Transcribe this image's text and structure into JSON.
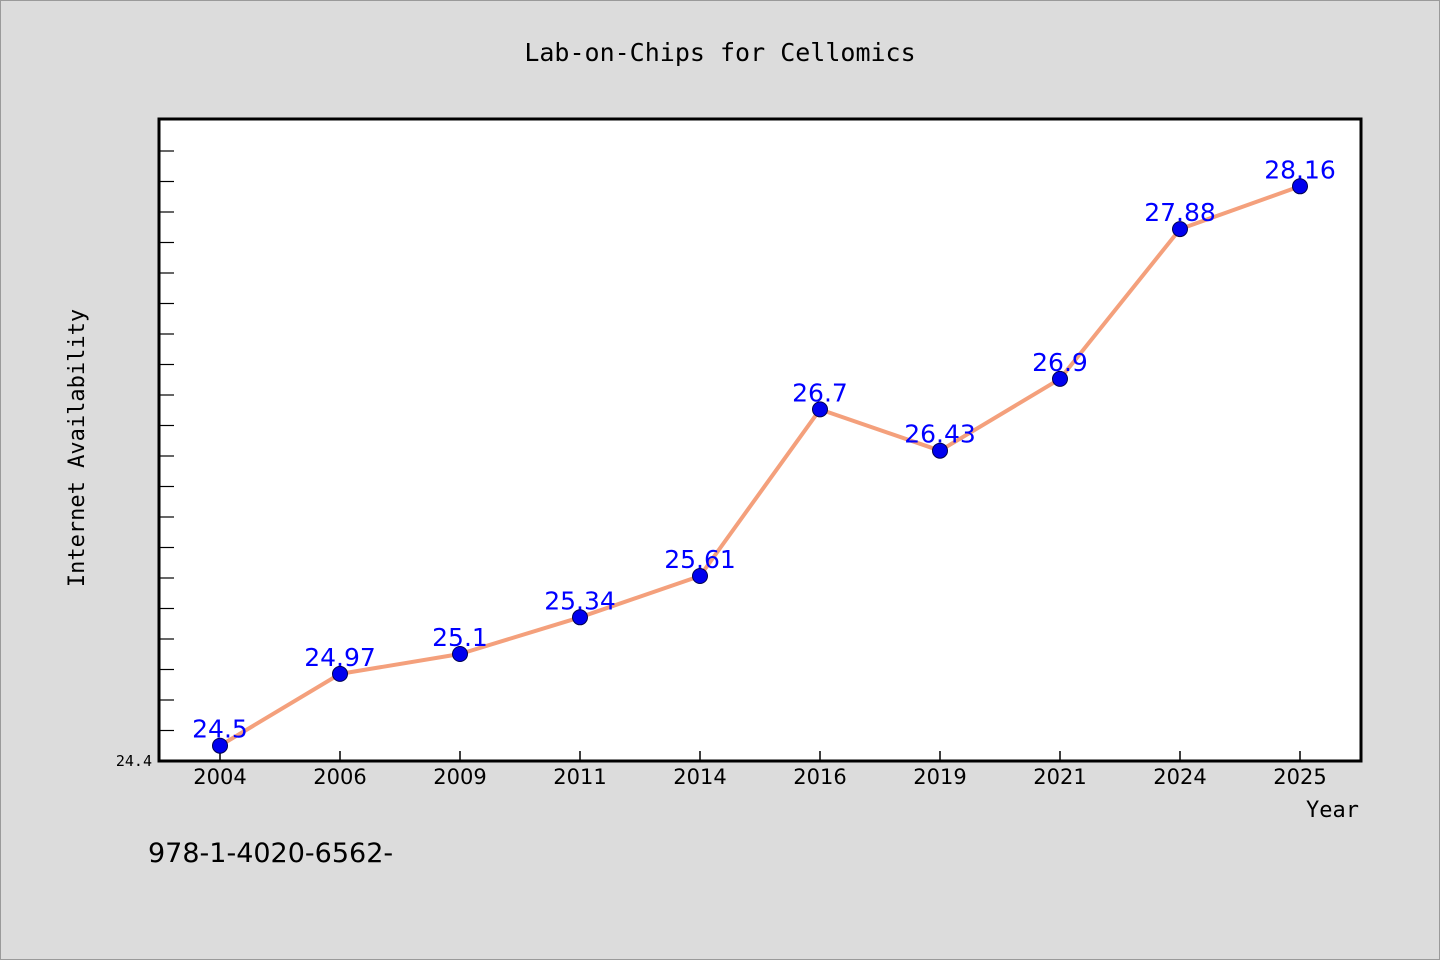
{
  "chart_data": {
    "type": "line",
    "title": "Lab-on-Chips for Cellomics",
    "xlabel": "Year",
    "ylabel": "Internet Availability",
    "categories": [
      "2004",
      "2006",
      "2009",
      "2011",
      "2014",
      "2016",
      "2019",
      "2021",
      "2024",
      "2025"
    ],
    "series": [
      {
        "values": [
          24.5,
          24.97,
          25.1,
          25.34,
          25.61,
          26.7,
          26.43,
          26.9,
          27.88,
          28.16
        ],
        "labels": [
          "24.5",
          "24.97",
          "25.1",
          "25.34",
          "25.61",
          "26.7",
          "26.43",
          "26.9",
          "27.88",
          "28.16"
        ],
        "line_color": "#f4a07c",
        "marker_color": "#0000ee",
        "label_color": "#0000ff"
      }
    ],
    "ylim": [
      24.4,
      28.6
    ],
    "ymin_label": "24.4",
    "grid": false,
    "legend": "none"
  },
  "footnote": "978-1-4020-6562-",
  "colors": {
    "background": "#dcdcdc",
    "plot_background": "#ffffff",
    "axis": "#000000"
  }
}
